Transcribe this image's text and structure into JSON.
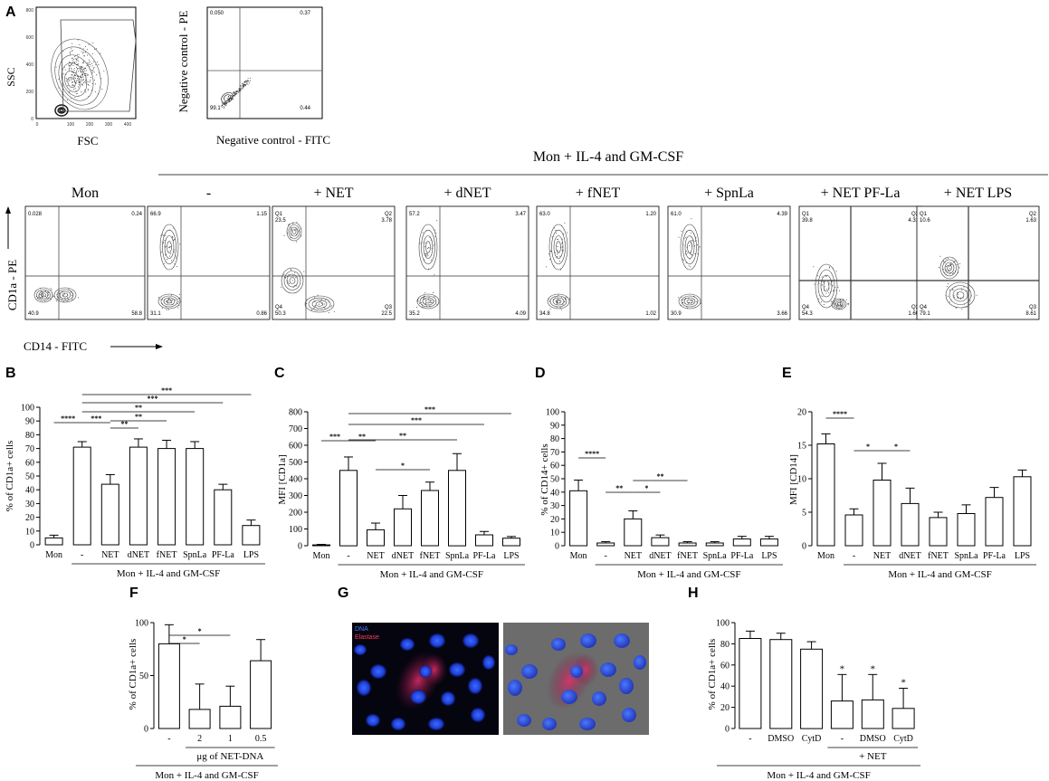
{
  "panel_letters": [
    "A",
    "B",
    "C",
    "D",
    "E",
    "F",
    "G",
    "H"
  ],
  "panel_a": {
    "scatter1": {
      "ylabel": "SSC",
      "xlabel": "FSC",
      "yticks": [
        "800",
        "600",
        "400",
        "200",
        "0"
      ],
      "xticks": [
        "0",
        "100",
        "200",
        "300",
        "400"
      ]
    },
    "scatter2": {
      "ylabel": "Negative control - PE",
      "xlabel": "Negative control - FITC",
      "q_ul": "0.050",
      "q_ur": "0.37",
      "q_ll": "99.1",
      "q_lr": "0.44"
    },
    "mon_header": "Mon + IL-4 and GM-CSF",
    "row_ylabel": "CD1a - PE",
    "row_xlabel": "CD14 - FITC",
    "plots": [
      {
        "title": "Mon",
        "ul": "0.028",
        "ur": "0.24",
        "ll": "40.9",
        "lr": "58.8",
        "style": "mon"
      },
      {
        "title": "-",
        "ul": "66.9",
        "ur": "1.15",
        "ll": "31.1",
        "lr": "0.86",
        "style": "high"
      },
      {
        "title": "+ NET",
        "ul": "Q1\n23.5",
        "ur": "Q2\n3.78",
        "ll": "Q4\n50.3",
        "lr": "Q3\n22.5",
        "style": "net"
      },
      {
        "title": "+ dNET",
        "ul": "57.2",
        "ur": "3.47",
        "ll": "35.2",
        "lr": "4.09",
        "style": "high"
      },
      {
        "title": "+ fNET",
        "ul": "63.0",
        "ur": "1.20",
        "ll": "34.8",
        "lr": "1.02",
        "style": "high"
      },
      {
        "title": "+ SpnLa",
        "ul": "61.0",
        "ur": "4.39",
        "ll": "30.9",
        "lr": "3.66",
        "style": "high"
      },
      {
        "title": "+ NET PF-La",
        "ul": "Q1\n39.8",
        "ur": "Q2\n4.31",
        "ll": "Q4\n54.3",
        "lr": "Q3\n1.60",
        "style": "pfla"
      },
      {
        "title": "+ NET LPS",
        "ul": "Q1\n10.6",
        "ur": "Q2\n1.63",
        "ll": "Q4\n79.1",
        "lr": "Q3\n8.61",
        "style": "lps"
      }
    ]
  },
  "chart_data": [
    {
      "panel": "B",
      "type": "bar",
      "ylabel": "% of CD1a+ cells",
      "categories": [
        "Mon",
        "-",
        "NET",
        "dNET",
        "fNET",
        "SpnLa",
        "PF-La",
        "LPS"
      ],
      "values": [
        5,
        71,
        44,
        71,
        70,
        70,
        40,
        14
      ],
      "errors": [
        2,
        4,
        7,
        6,
        6,
        5,
        4,
        4
      ],
      "ylim": [
        0,
        100
      ],
      "yticks": [
        0,
        10,
        20,
        30,
        40,
        50,
        60,
        70,
        80,
        90,
        100
      ],
      "group_label": "Mon + IL-4 and GM-CSF",
      "sig": [
        {
          "from": 0,
          "to": 1,
          "label": "****"
        },
        {
          "from": 1,
          "to": 2,
          "label": "***"
        },
        {
          "from": 2,
          "to": 3,
          "label": "**"
        },
        {
          "from": 2,
          "to": 4,
          "label": "**"
        },
        {
          "from": 1,
          "to": 5,
          "label": "**"
        },
        {
          "from": 1,
          "to": 6,
          "label": "***"
        },
        {
          "from": 1,
          "to": 7,
          "label": "***"
        }
      ]
    },
    {
      "panel": "C",
      "type": "bar",
      "ylabel": "MFI [CD1a]",
      "categories": [
        "Mon",
        "-",
        "NET",
        "dNET",
        "fNET",
        "SpnLa",
        "PF-La",
        "LPS"
      ],
      "values": [
        5,
        450,
        95,
        220,
        330,
        450,
        65,
        45
      ],
      "errors": [
        3,
        80,
        40,
        80,
        50,
        100,
        20,
        10
      ],
      "ylim": [
        0,
        800
      ],
      "yticks": [
        0,
        100,
        200,
        300,
        400,
        500,
        600,
        700,
        800
      ],
      "group_label": "Mon + IL-4 and GM-CSF",
      "sig": [
        {
          "from": 0,
          "to": 1,
          "label": "***"
        },
        {
          "from": 1,
          "to": 2,
          "label": "**"
        },
        {
          "from": 2,
          "to": 4,
          "label": "*"
        },
        {
          "from": 1,
          "to": 5,
          "label": "**"
        },
        {
          "from": 1,
          "to": 6,
          "label": "***"
        },
        {
          "from": 1,
          "to": 7,
          "label": "***"
        }
      ]
    },
    {
      "panel": "D",
      "type": "bar",
      "ylabel": "% of CD14+ cells",
      "categories": [
        "Mon",
        "-",
        "NET",
        "dNET",
        "fNET",
        "SpnLa",
        "PF-La",
        "LPS"
      ],
      "values": [
        41,
        2,
        20,
        6,
        2,
        2,
        5,
        5
      ],
      "errors": [
        8,
        1,
        6,
        2,
        1,
        1,
        2,
        2
      ],
      "ylim": [
        0,
        100
      ],
      "yticks": [
        0,
        10,
        20,
        30,
        40,
        50,
        60,
        70,
        80,
        90,
        100
      ],
      "group_label": "Mon + IL-4 and GM-CSF",
      "sig": [
        {
          "from": 0,
          "to": 1,
          "label": "****"
        },
        {
          "from": 1,
          "to": 2,
          "label": "**"
        },
        {
          "from": 2,
          "to": 3,
          "label": "*"
        },
        {
          "from": 2,
          "to": 4,
          "label": "**"
        }
      ]
    },
    {
      "panel": "E",
      "type": "bar",
      "ylabel": "MFI [CD14]",
      "categories": [
        "Mon",
        "-",
        "NET",
        "dNET",
        "fNET",
        "SpnLa",
        "PF-La",
        "LPS"
      ],
      "values": [
        15.2,
        4.6,
        9.8,
        6.3,
        4.2,
        4.8,
        7.2,
        10.3
      ],
      "errors": [
        1.5,
        0.9,
        2.5,
        2.3,
        0.8,
        1.3,
        1.5,
        1.0
      ],
      "ylim": [
        0,
        20
      ],
      "yticks": [
        0,
        5,
        10,
        15,
        20
      ],
      "group_label": "Mon + IL-4 and GM-CSF",
      "sig": [
        {
          "from": 0,
          "to": 1,
          "label": "****"
        },
        {
          "from": 1,
          "to": 2,
          "label": "*"
        },
        {
          "from": 2,
          "to": 3,
          "label": "*"
        }
      ]
    },
    {
      "panel": "F",
      "type": "bar",
      "ylabel": "% of CD1a+ cells",
      "categories": [
        "-",
        "2",
        "1",
        "0.5"
      ],
      "values": [
        80,
        18,
        21,
        64
      ],
      "errors": [
        18,
        24,
        19,
        20
      ],
      "ylim": [
        0,
        100
      ],
      "yticks": [
        0,
        50,
        100
      ],
      "sub_label": "μg of NET-DNA",
      "sub_from": 1,
      "sub_to": 3,
      "group_label": "Mon + IL-4 and GM-CSF",
      "sig": [
        {
          "from": 0,
          "to": 1,
          "label": "*"
        },
        {
          "from": 0,
          "to": 2,
          "label": "*"
        }
      ]
    },
    {
      "panel": "H",
      "type": "bar",
      "ylabel": "% of CD1a+ cells",
      "categories": [
        "-",
        "DMSO",
        "CytD",
        "-",
        "DMSO",
        "CytD"
      ],
      "values": [
        85,
        84,
        75,
        26,
        27,
        19
      ],
      "errors": [
        7,
        6,
        7,
        25,
        24,
        19
      ],
      "stars": [
        "",
        "",
        "",
        "*",
        "*",
        "*"
      ],
      "ylim": [
        0,
        100
      ],
      "yticks": [
        0,
        20,
        40,
        60,
        80,
        100
      ],
      "sub_label": "+ NET",
      "sub_from": 3,
      "sub_to": 5,
      "group_label": "Mon + IL-4 and GM-CSF",
      "sig": []
    }
  ],
  "panel_g": {
    "legend_dna": "DNA",
    "legend_elastase": "Elastase",
    "dna_color": "#2f5cff",
    "elastase_color": "#e0306a"
  }
}
